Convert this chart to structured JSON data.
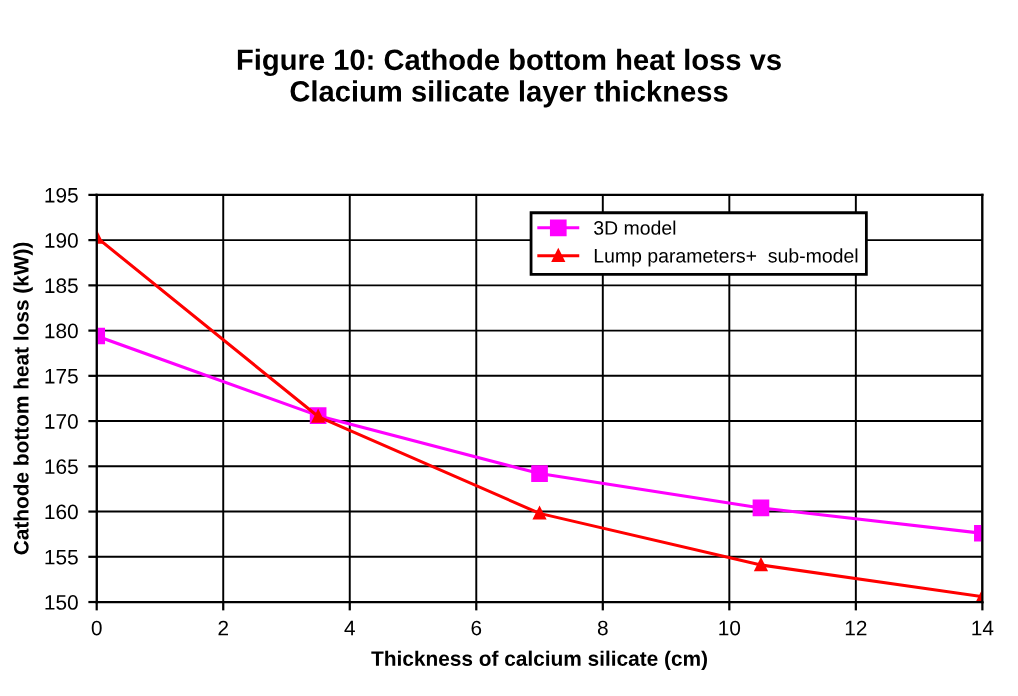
{
  "chart_data": {
    "type": "line",
    "title": "Figure 10: Cathode bottom heat loss vs\nClacium silicate layer thickness",
    "xlabel": "Thickness of calcium silicate (cm)",
    "ylabel": "Cathode bottom heat loss (kW))",
    "x": [
      0,
      3.5,
      7,
      10.5,
      14
    ],
    "series": [
      {
        "name": "3D model",
        "color": "#ff00ff",
        "marker": "square",
        "values": [
          179.4,
          170.6,
          164.2,
          160.4,
          157.6
        ]
      },
      {
        "name": "Lump parameters+  sub-model",
        "color": "#ff0000",
        "marker": "triangle",
        "values": [
          190.3,
          170.5,
          159.8,
          154.1,
          150.6
        ]
      }
    ],
    "xlim": [
      0,
      14
    ],
    "xticks": [
      0,
      2,
      4,
      6,
      8,
      10,
      12,
      14
    ],
    "ylim": [
      150,
      195
    ],
    "yticks": [
      150,
      155,
      160,
      165,
      170,
      175,
      180,
      185,
      190,
      195
    ],
    "grid": true,
    "legend": "top right",
    "line_style": "solid"
  }
}
